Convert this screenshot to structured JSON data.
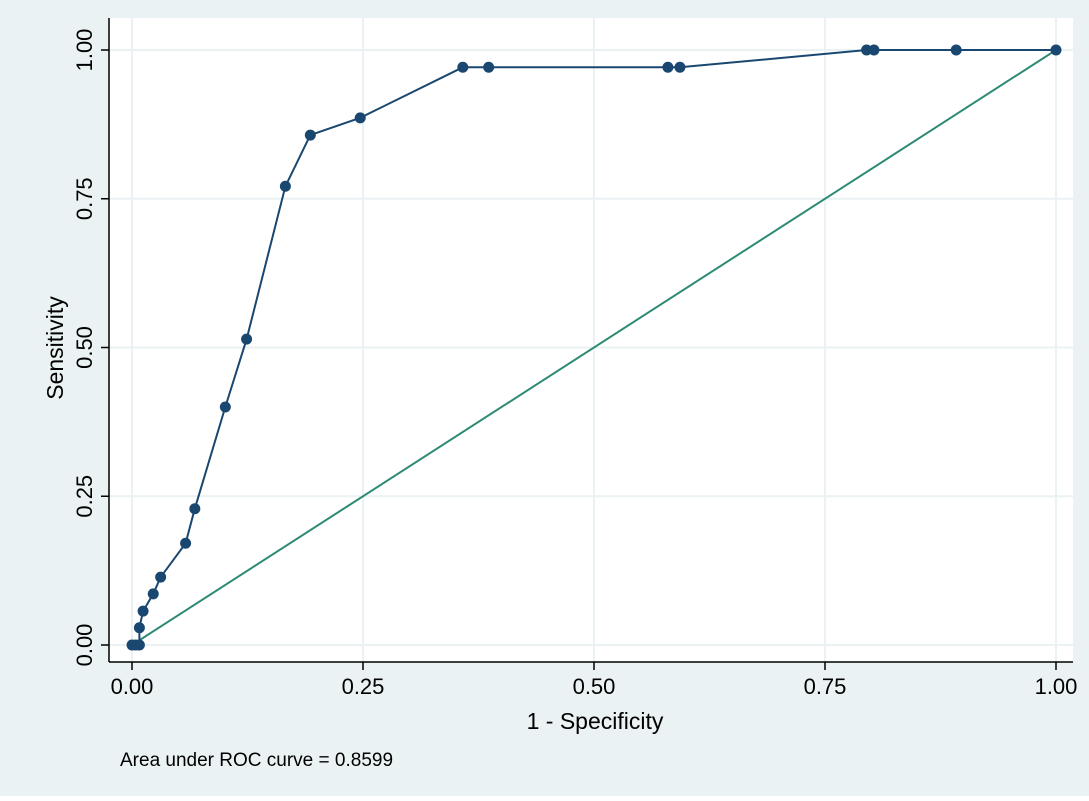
{
  "chart_data": {
    "type": "line",
    "xlabel": "1 - Specificity",
    "ylabel": "Sensitivity",
    "xlim": [
      0,
      1
    ],
    "ylim": [
      0,
      1
    ],
    "x_ticks": [
      "0.00",
      "0.25",
      "0.50",
      "0.75",
      "1.00"
    ],
    "y_ticks": [
      "0.00",
      "0.25",
      "0.50",
      "0.75",
      "1.00"
    ],
    "grid": true,
    "note": "Area under ROC curve = 0.8599",
    "series": [
      {
        "name": "",
        "role": "roc-curve",
        "markers": true,
        "x": [
          0.0,
          0.004,
          0.008,
          0.008,
          0.012,
          0.023,
          0.031,
          0.058,
          0.068,
          0.101,
          0.124,
          0.166,
          0.193,
          0.247,
          0.358,
          0.386,
          0.58,
          0.593,
          0.795,
          0.803,
          0.892,
          1.0
        ],
        "y": [
          0.0,
          0.0,
          0.0,
          0.029,
          0.057,
          0.086,
          0.114,
          0.171,
          0.229,
          0.4,
          0.514,
          0.771,
          0.857,
          0.886,
          0.971,
          0.971,
          0.971,
          0.971,
          1.0,
          1.0,
          1.0,
          1.0
        ]
      },
      {
        "name": "",
        "role": "reference-line",
        "markers": false,
        "x": [
          0,
          1
        ],
        "y": [
          0,
          1
        ]
      }
    ],
    "colors": {
      "background": "#eaf2f3",
      "plot_area": "#ffffff",
      "grid": "#eaf2f3",
      "roc": "#1a476f",
      "reference": "#2d8a74",
      "axis": "#000000"
    }
  }
}
